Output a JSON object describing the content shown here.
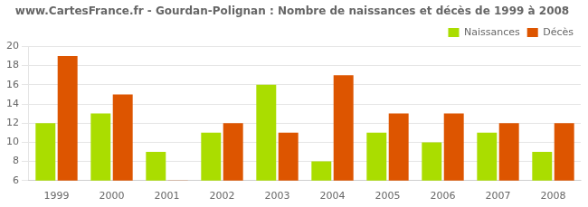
{
  "chart_data": {
    "type": "bar",
    "title": "www.CartesFrance.fr - Gourdan-Polignan : Nombre de naissances et décès de 1999 à 2008",
    "categories": [
      "1999",
      "2000",
      "2001",
      "2002",
      "2003",
      "2004",
      "2005",
      "2006",
      "2007",
      "2008"
    ],
    "series": [
      {
        "name": "Naissances",
        "color": "#AADD00",
        "values": [
          12,
          13,
          9,
          11,
          16,
          8,
          11,
          10,
          11,
          9
        ]
      },
      {
        "name": "Décès",
        "color": "#DD5500",
        "values": [
          19,
          15,
          6,
          12,
          11,
          17,
          13,
          13,
          12,
          12
        ]
      }
    ],
    "ylim": [
      6,
      20
    ],
    "yticks": [
      6,
      8,
      10,
      12,
      14,
      16,
      18,
      20
    ],
    "grid": true,
    "legend": "upper right"
  }
}
